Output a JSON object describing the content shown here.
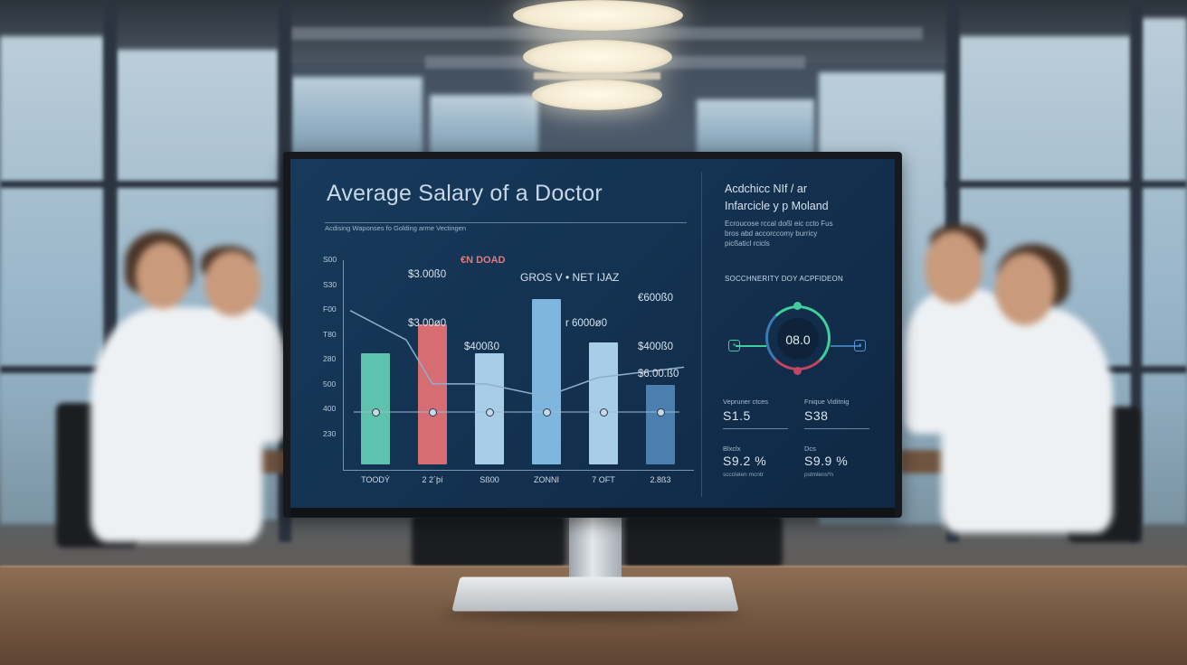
{
  "screen": {
    "title": "Average Salary of a Doctor",
    "subtitle": "Acdising Waponses fo Golding arme Vectingen",
    "red_label": "€N DOAD",
    "legend_label": "GROS V • NET IJAZ"
  },
  "chart_data": {
    "type": "bar",
    "title": "",
    "xlabel": "",
    "ylabel": "",
    "y_ticks": [
      "S00",
      "S30",
      "F00",
      "T80",
      "280",
      "500",
      "400",
      "230"
    ],
    "categories": [
      "TOODÝ",
      "2 2´þí",
      "Sß00",
      "ZONNI",
      "7 OFT",
      "2.8ß3"
    ],
    "values": [
      0.53,
      0.67,
      0.53,
      0.79,
      0.58,
      0.38
    ],
    "trend_line_values": [
      0.76,
      0.62,
      0.41,
      0.41,
      0.35,
      0.44,
      0.49
    ],
    "bar_colors": [
      "#5fc2ad",
      "#d56d73",
      "#a8cde6",
      "#7fb6df",
      "#a8cde6",
      "#4b7fb0"
    ],
    "annotations": [
      "$3.00ß0",
      "$3.00ø0",
      "$400ß0",
      "€600ß0",
      "r 6000ø0",
      "$400ß0",
      "$6.00.ß0"
    ],
    "grid": false
  },
  "sidebar": {
    "title_line1": "Acdchicc NIf / ar",
    "title_line2": "Infarcicle y p Moland",
    "body_line1": "Ecroucose rccal doßl eic ccto Fus",
    "body_line2": "bros abd accorccomy burricy",
    "body_line3": "picßaticl rcicls",
    "section_label": "SOCCHNERITY DOY ACPFIDEON",
    "gauge_value": "08.0",
    "stats": [
      {
        "label": "Vepruner ctces",
        "value": "S1.5",
        "foot": ""
      },
      {
        "label": "Fnique Viditnig",
        "value": "S38",
        "foot": ""
      },
      {
        "label": "Blxclx",
        "value": "S9.2 %",
        "foot": "sccclelen mcntr"
      },
      {
        "label": "Dcs",
        "value": "S9.9 %",
        "foot": "pstmlensºn"
      }
    ]
  },
  "colors": {
    "screen_bg": "#13304f",
    "accent_green": "#3fcf9a",
    "accent_red": "#c2465f",
    "accent_blue": "#3e78b5"
  }
}
